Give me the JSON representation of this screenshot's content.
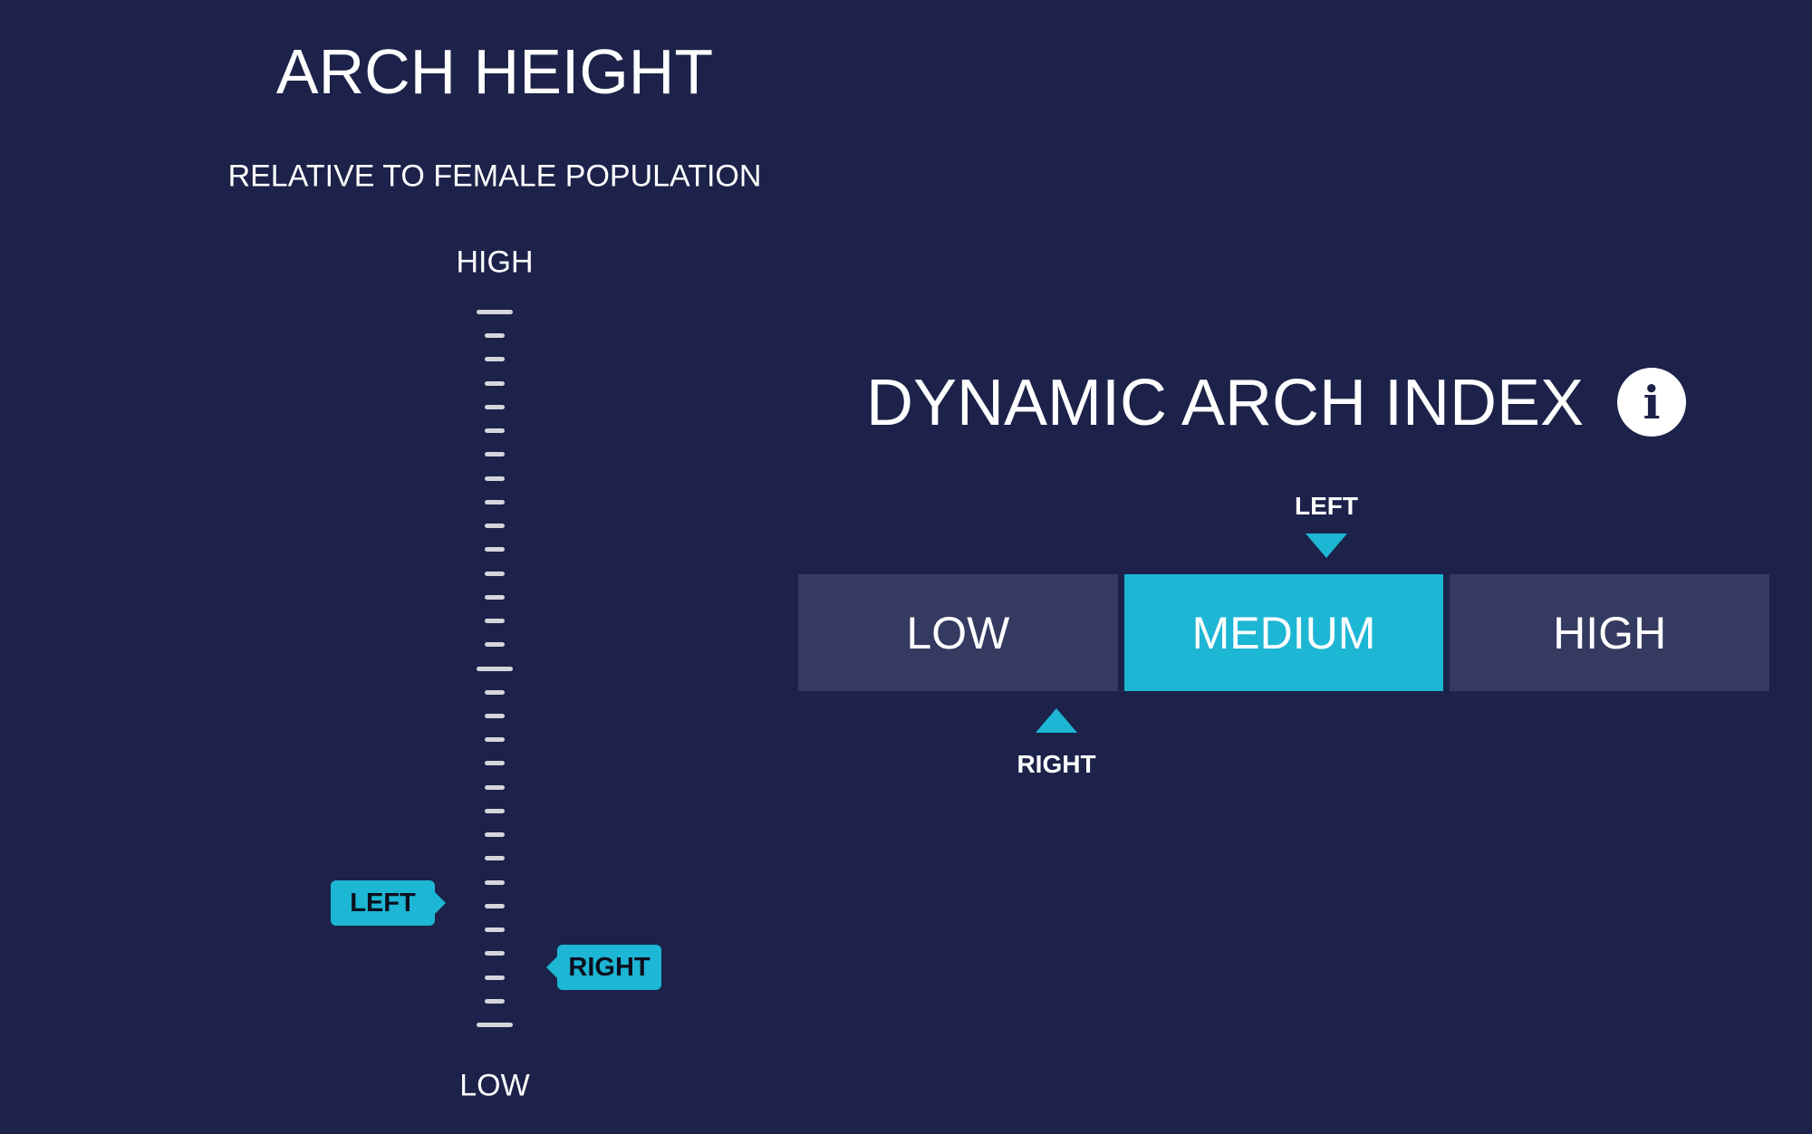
{
  "arch_height": {
    "title": "ARCH HEIGHT",
    "subtitle": "RELATIVE TO FEMALE POPULATION",
    "scale_high_label": "HIGH",
    "scale_low_label": "LOW",
    "markers": [
      {
        "label": "LEFT",
        "level": 0.17
      },
      {
        "label": "RIGHT",
        "level": 0.08
      }
    ]
  },
  "dynamic_arch_index": {
    "title": "DYNAMIC ARCH INDEX",
    "info_icon": "i",
    "segments": [
      {
        "label": "LOW",
        "active": false
      },
      {
        "label": "MEDIUM",
        "active": true
      },
      {
        "label": "HIGH",
        "active": false
      }
    ],
    "left_marker": {
      "label": "LEFT",
      "segment": "MEDIUM"
    },
    "right_marker": {
      "label": "RIGHT",
      "segment": "LOW"
    }
  },
  "colors": {
    "background": "#1c2249",
    "accent": "#1db6d4",
    "segment": "#343a60"
  }
}
